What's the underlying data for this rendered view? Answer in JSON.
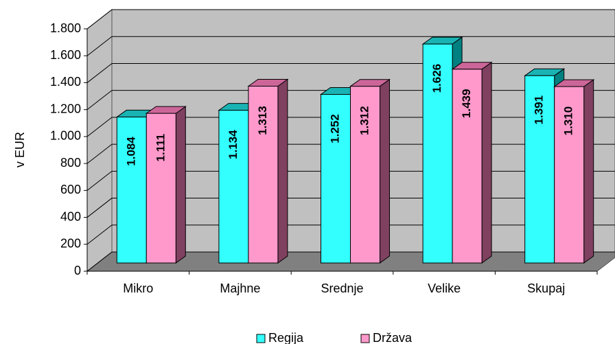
{
  "chart_data": {
    "type": "bar3d",
    "y_label": "v EUR",
    "categories": [
      "Mikro",
      "Majhne",
      "Srednje",
      "Velike",
      "Skupaj"
    ],
    "series": [
      {
        "name": "Regija",
        "color": "#33ffff",
        "side": "#008080",
        "top": "#1ab3b3",
        "values": [
          1084,
          1134,
          1252,
          1626,
          1391
        ],
        "value_labels": [
          "1.084",
          "1.134",
          "1.252",
          "1.626",
          "1.391"
        ]
      },
      {
        "name": "Država",
        "color": "#ff99cc",
        "side": "#804060",
        "top": "#cc6699",
        "values": [
          1111,
          1313,
          1312,
          1439,
          1310
        ],
        "value_labels": [
          "1.111",
          "1.313",
          "1.312",
          "1.439",
          "1.310"
        ]
      }
    ],
    "ylim": [
      0,
      1800
    ],
    "yticks": [
      0,
      200,
      400,
      600,
      800,
      {
        "value": 1000,
        "label": "1.000"
      },
      {
        "value": 1200,
        "label": "1.200"
      },
      {
        "value": 1400,
        "label": "1.400"
      },
      {
        "value": 1600,
        "label": "1.600"
      },
      {
        "value": 1800,
        "label": "1.800"
      }
    ],
    "grid": true
  }
}
